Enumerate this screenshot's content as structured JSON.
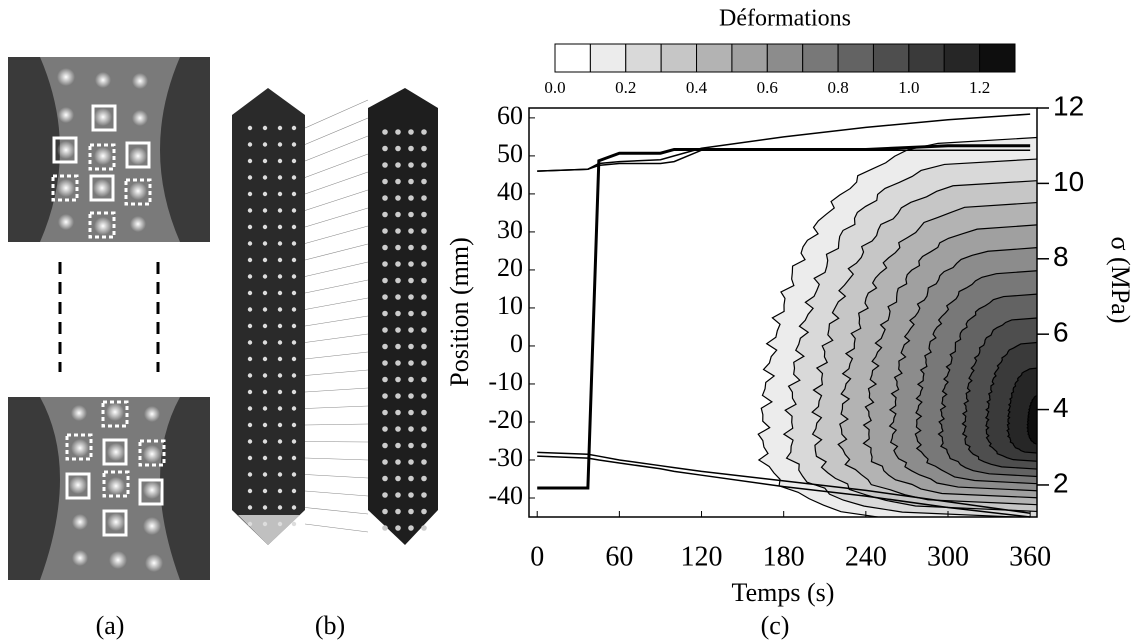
{
  "panels": [
    {
      "label": "(a)"
    },
    {
      "label": "(b)"
    },
    {
      "label": "(c)"
    }
  ],
  "chart_data": {
    "type": "contour",
    "xlabel": "Temps (s)",
    "ylabel": "Position (mm)",
    "y2label": "σ (MPa)",
    "xlim": [
      -6,
      365
    ],
    "xticks": [
      0,
      60,
      120,
      180,
      240,
      300,
      360
    ],
    "ylim": [
      -45,
      62.6
    ],
    "yticks": [
      -40,
      -30,
      -20,
      -10,
      0,
      10,
      20,
      30,
      40,
      50,
      60
    ],
    "y2lim": [
      1.15,
      12
    ],
    "y2ticks": [
      2,
      4,
      6,
      8,
      10,
      12
    ],
    "colorbar": {
      "title": "Déformations",
      "levels": [
        0,
        0.1,
        0.2,
        0.3,
        0.4,
        0.5,
        0.6,
        0.7,
        0.8,
        0.9,
        1.0,
        1.1,
        1.2,
        1.3
      ],
      "colors": [
        "#ffffff",
        "#ececec",
        "#d9d9d9",
        "#c6c6c6",
        "#b3b3b3",
        "#a0a0a0",
        "#8c8c8c",
        "#787878",
        "#636363",
        "#4e4e4e",
        "#3a3a3a",
        "#262626",
        "#0e0e0e"
      ],
      "ticks": [
        {
          "value": 0,
          "label": "0.0"
        },
        0.2,
        0.4,
        0.6,
        0.8,
        {
          "value": 1,
          "label": "1.0"
        },
        1.2
      ]
    },
    "x": [
      0,
      37,
      45,
      60,
      90,
      100,
      120,
      180,
      240,
      300,
      360
    ],
    "series": [
      {
        "color": "#000000",
        "axis": "y2",
        "values": [
          1.92,
          1.92,
          10.6,
          10.8,
          10.8,
          10.9,
          10.9,
          10.9,
          10.9,
          11,
          11
        ]
      },
      {
        "color": "#000000",
        "values": [
          46,
          46.5,
          48,
          48.5,
          49,
          50,
          52,
          55,
          57.5,
          59.5,
          61
        ]
      },
      {
        "color": "#000000",
        "values": [
          46,
          46.5,
          47.5,
          48,
          48,
          48.5,
          51.5,
          51.5,
          51.5,
          51.5,
          51.5
        ]
      },
      {
        "color": "#000000",
        "values": [
          -28,
          -28.5,
          -29,
          -30,
          -31.5,
          -32,
          -33,
          -35.5,
          -38,
          -41,
          -44
        ]
      },
      {
        "color": "#000000",
        "values": [
          -29,
          -29.5,
          -30,
          -30.8,
          -32.3,
          -33,
          -34,
          -37,
          -39.5,
          -42.5,
          -45
        ]
      }
    ]
  }
}
